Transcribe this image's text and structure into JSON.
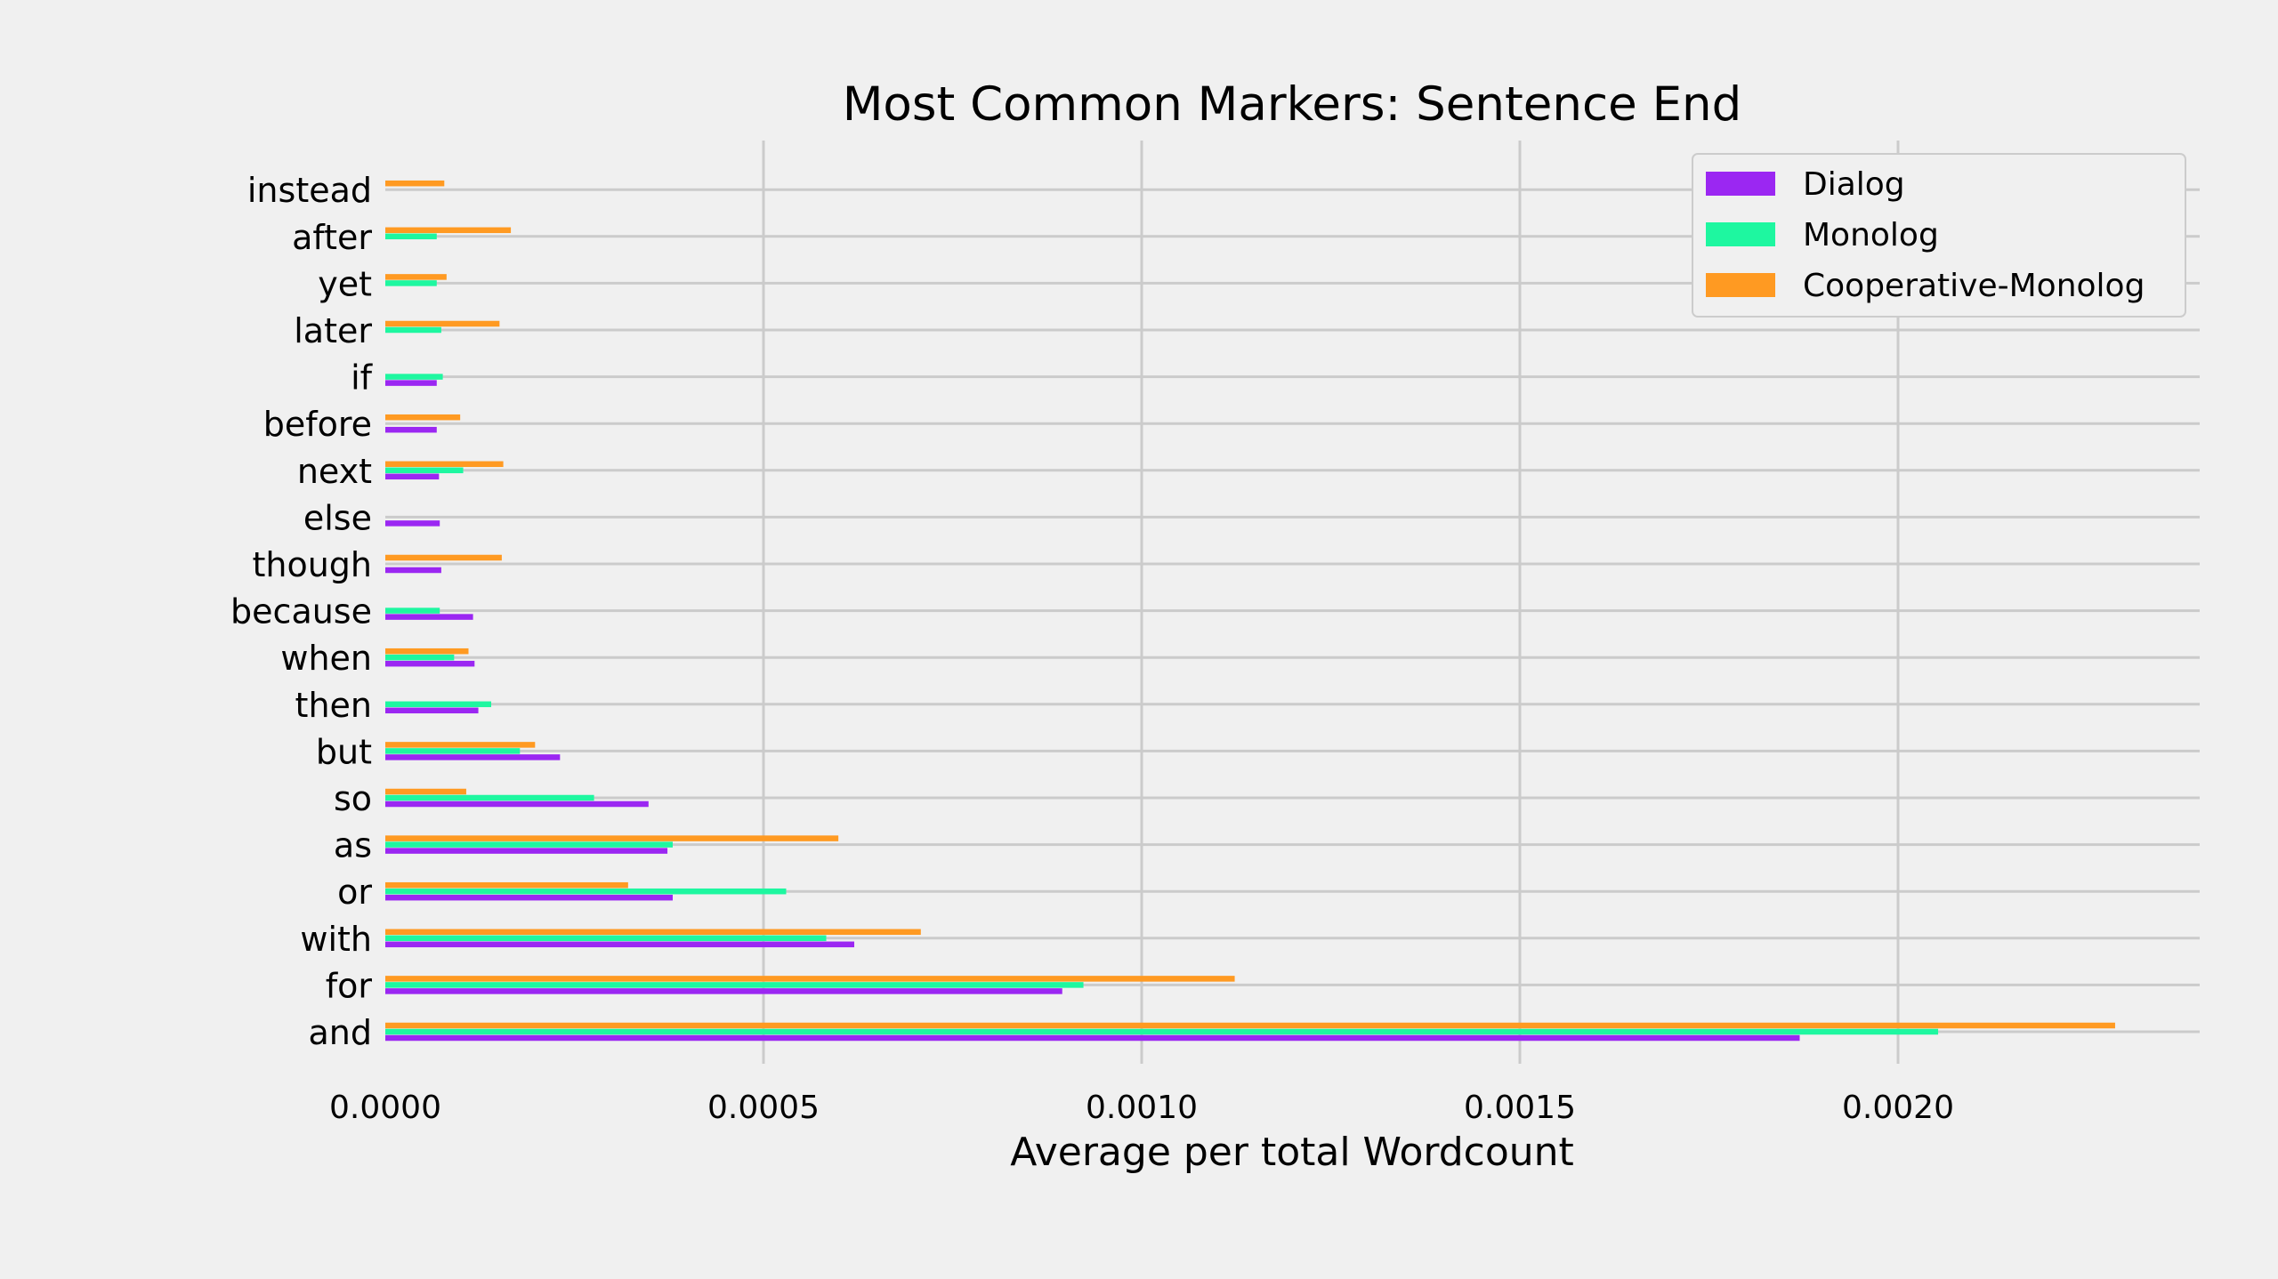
{
  "chart_data": {
    "type": "bar",
    "orientation": "horizontal",
    "title": "Most Common Markers: Sentence End",
    "xlabel": "Average per total Wordcount",
    "ylabel": "",
    "xlim": [
      0,
      0.0024
    ],
    "xticks": [
      0.0,
      0.0005,
      0.001,
      0.0015,
      0.002
    ],
    "xtick_labels": [
      "0.0000",
      "0.0005",
      "0.0010",
      "0.0015",
      "0.0020"
    ],
    "grid": true,
    "legend_position": "top-right",
    "categories": [
      "and",
      "for",
      "with",
      "or",
      "as",
      "so",
      "but",
      "then",
      "when",
      "because",
      "though",
      "else",
      "next",
      "before",
      "if",
      "later",
      "yet",
      "after",
      "instead"
    ],
    "series": [
      {
        "name": "Dialog",
        "color": "#9b27f2",
        "values": [
          0.00187,
          0.000895,
          0.00062,
          0.00038,
          0.000373,
          0.000348,
          0.000231,
          0.000123,
          0.000118,
          0.000116,
          7.4e-05,
          7.2e-05,
          7.1e-05,
          6.8e-05,
          6.8e-05,
          0,
          0,
          0,
          0
        ]
      },
      {
        "name": "Monolog",
        "color": "#1ef7a0",
        "values": [
          0.002053,
          0.000923,
          0.000583,
          0.00053,
          0.00038,
          0.000276,
          0.000178,
          0.00014,
          9.1e-05,
          7.2e-05,
          0,
          0,
          0.000103,
          0,
          7.6e-05,
          7.4e-05,
          6.8e-05,
          6.8e-05,
          0
        ]
      },
      {
        "name": "Cooperative-Monolog",
        "color": "#ff9a22",
        "values": [
          0.002287,
          0.001123,
          0.000708,
          0.000321,
          0.000599,
          0.000107,
          0.000198,
          0,
          0.00011,
          0,
          0.000154,
          0,
          0.000156,
          9.9e-05,
          0,
          0.000151,
          8.1e-05,
          0.000166,
          7.8e-05
        ]
      }
    ]
  }
}
